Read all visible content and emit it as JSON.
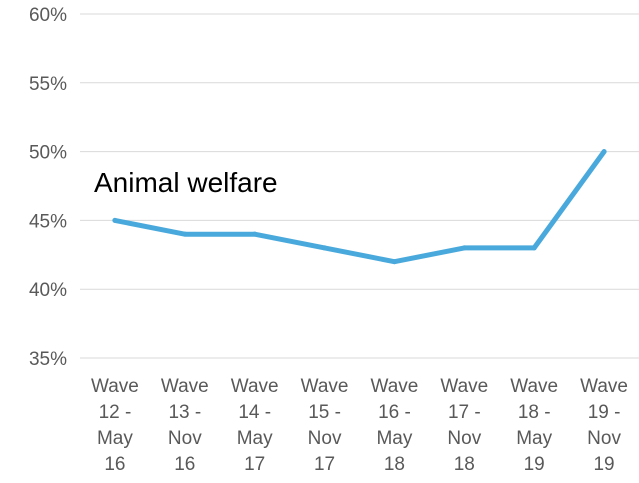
{
  "chart_data": {
    "type": "line",
    "categories": [
      [
        "Wave",
        "12 -",
        "May",
        "16"
      ],
      [
        "Wave",
        "13 -",
        "Nov",
        "16"
      ],
      [
        "Wave",
        "14 -",
        "May",
        "17"
      ],
      [
        "Wave",
        "15 -",
        "Nov",
        "17"
      ],
      [
        "Wave",
        "16 -",
        "May",
        "18"
      ],
      [
        "Wave",
        "17 -",
        "Nov",
        "18"
      ],
      [
        "Wave",
        "18 -",
        "May",
        "19"
      ],
      [
        "Wave",
        "19 -",
        "Nov",
        "19"
      ]
    ],
    "series": [
      {
        "name": "Animal welfare",
        "values": [
          45,
          44,
          44,
          43,
          42,
          43,
          43,
          50
        ],
        "color": "#4aa9dc"
      }
    ],
    "ylim": [
      35,
      60
    ],
    "yticks": [
      35,
      40,
      45,
      50,
      55,
      60
    ],
    "ytick_format": "%",
    "grid": true,
    "legend": "inline-label",
    "title": "",
    "xlabel": "",
    "ylabel": ""
  }
}
